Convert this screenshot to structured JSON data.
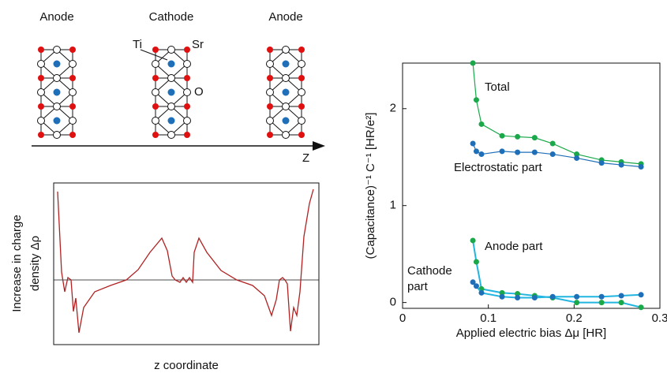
{
  "diagram": {
    "labels": [
      "Anode",
      "Cathode",
      "Anode"
    ],
    "atom_labels": [
      "Ti",
      "Sr",
      "O"
    ],
    "axis_label": "Z",
    "profile_ylabel": [
      "Increase in charge",
      "density Δρ"
    ],
    "profile_xlabel": "z coordinate"
  },
  "chart_data": {
    "type": "line",
    "xlabel": "Applied electric bias Δμ [HR]",
    "ylabel": "(Capacitance)⁻¹ C⁻¹ [HR/e²]",
    "x": [
      0.082,
      0.086,
      0.092,
      0.116,
      0.134,
      0.154,
      0.175,
      0.203,
      0.232,
      0.255,
      0.278
    ],
    "series": [
      {
        "name": "Total",
        "color": "#1aa84a",
        "values": [
          2.47,
          2.09,
          1.84,
          1.72,
          1.71,
          1.7,
          1.64,
          1.53,
          1.47,
          1.45,
          1.43
        ]
      },
      {
        "name": "Electrostatic part",
        "color": "#1f6fb8",
        "values": [
          1.64,
          1.56,
          1.53,
          1.56,
          1.55,
          1.55,
          1.53,
          1.49,
          1.44,
          1.42,
          1.4
        ]
      },
      {
        "name": "Anode part",
        "color": "#1aa84a",
        "values": [
          0.64,
          0.42,
          0.14,
          0.1,
          0.09,
          0.07,
          0.05,
          0.0,
          0.0,
          0.0,
          -0.05
        ]
      },
      {
        "name": "Cathode part",
        "color": "#1f6fb8",
        "values": [
          0.21,
          0.17,
          0.1,
          0.06,
          0.05,
          0.05,
          0.06,
          0.06,
          0.06,
          0.07,
          0.08
        ]
      }
    ],
    "xlim": [
      0,
      0.3
    ],
    "xticks": [
      0,
      0.1,
      0.2,
      0.3
    ],
    "ylim": [
      -0.06,
      2.47
    ],
    "yticks": [
      0,
      1,
      2
    ]
  }
}
